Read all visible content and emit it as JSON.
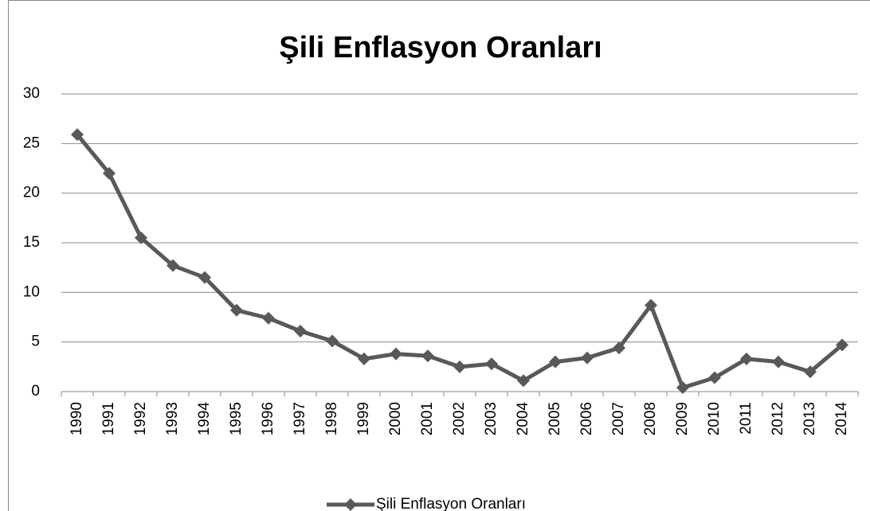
{
  "chart_data": {
    "type": "line",
    "title": "Şili Enflasyon Oranları",
    "categories": [
      "1990",
      "1991",
      "1992",
      "1993",
      "1994",
      "1995",
      "1996",
      "1997",
      "1998",
      "1999",
      "2000",
      "2001",
      "2002",
      "2003",
      "2004",
      "2005",
      "2006",
      "2007",
      "2008",
      "2009",
      "2010",
      "2011",
      "2012",
      "2013",
      "2014"
    ],
    "series": [
      {
        "name": "Şili Enflasyon Oranları",
        "color": "#595959",
        "values": [
          25.9,
          22.0,
          15.5,
          12.7,
          11.5,
          8.2,
          7.4,
          6.1,
          5.1,
          3.3,
          3.8,
          3.6,
          2.5,
          2.8,
          1.1,
          3.0,
          3.4,
          4.4,
          8.7,
          0.4,
          1.4,
          3.3,
          3.0,
          2.0,
          4.7
        ]
      }
    ],
    "ylim": [
      0,
      30
    ],
    "yticks": [
      0,
      5,
      10,
      15,
      20,
      25,
      30
    ],
    "grid": true,
    "legend": "bottom"
  }
}
